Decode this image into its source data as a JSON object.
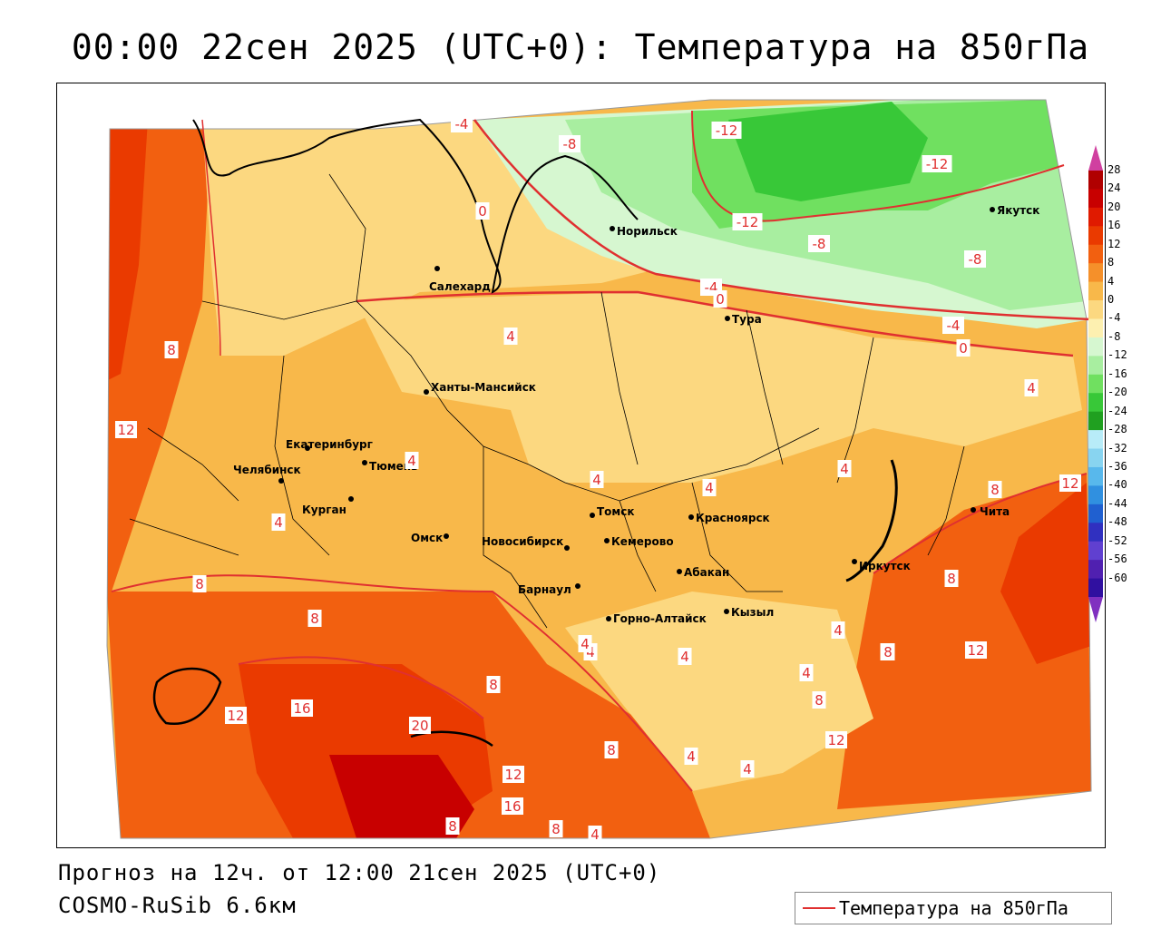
{
  "title": "00:00 22сен 2025 (UTC+0): Температура на 850гПа",
  "forecast_info": "Прогноз на 12ч. от 12:00 21сен 2025 (UTC+0)",
  "model_info": "COSMO-RuSib 6.6км",
  "legend": {
    "series_label": "Температура на 850гПа",
    "line_color": "#e03030"
  },
  "colorbar": {
    "ticks": [
      "28",
      "24",
      "20",
      "16",
      "12",
      "8",
      "4",
      "0",
      "-4",
      "-8",
      "-12",
      "-16",
      "-20",
      "-24",
      "-28",
      "-32",
      "-36",
      "-40",
      "-44",
      "-48",
      "-52",
      "-56",
      "-60"
    ],
    "colors": [
      "#b00000",
      "#c80000",
      "#e01a00",
      "#ea3a00",
      "#f26010",
      "#f5902a",
      "#f8b84a",
      "#fcd880",
      "#fdf0b0",
      "#d6f7d0",
      "#a8eea0",
      "#70e060",
      "#38c838",
      "#20a020",
      "#b8ecf8",
      "#88d4f0",
      "#58b8ec",
      "#3090e0",
      "#2060d0",
      "#3030c0",
      "#6040d0",
      "#5020b0",
      "#3010a0"
    ],
    "top_arrow_color": "#d040a0",
    "bottom_arrow_color": "#8030c0"
  },
  "cities": [
    {
      "name": "Норильск"
    },
    {
      "name": "Якутск"
    },
    {
      "name": "Салехард"
    },
    {
      "name": "Тура"
    },
    {
      "name": "Ханты-Мансийск"
    },
    {
      "name": "Екатеринбург"
    },
    {
      "name": "Тюмень"
    },
    {
      "name": "Челябинск"
    },
    {
      "name": "Курган"
    },
    {
      "name": "Омск"
    },
    {
      "name": "Новосибирск"
    },
    {
      "name": "Томск"
    },
    {
      "name": "Кемерово"
    },
    {
      "name": "Красноярск"
    },
    {
      "name": "Барнаул"
    },
    {
      "name": "Абакан"
    },
    {
      "name": "Иркутск"
    },
    {
      "name": "Чита"
    },
    {
      "name": "Горно-Алтайск"
    },
    {
      "name": "Кызыл"
    }
  ],
  "isoline_labels": [
    "-4",
    "-8",
    "-12",
    "-12",
    "-12",
    "-8",
    "-8",
    "0",
    "-4",
    "0",
    "-4",
    "0",
    "4",
    "4",
    "4",
    "4",
    "4",
    "8",
    "12",
    "8",
    "8",
    "8",
    "4",
    "12",
    "16",
    "12",
    "20",
    "16",
    "8",
    "12",
    "8",
    "4",
    "8",
    "4",
    "4",
    "4",
    "4",
    "8",
    "4",
    "8",
    "12",
    "8",
    "12",
    "8",
    "4",
    "4",
    "8",
    "4"
  ]
}
